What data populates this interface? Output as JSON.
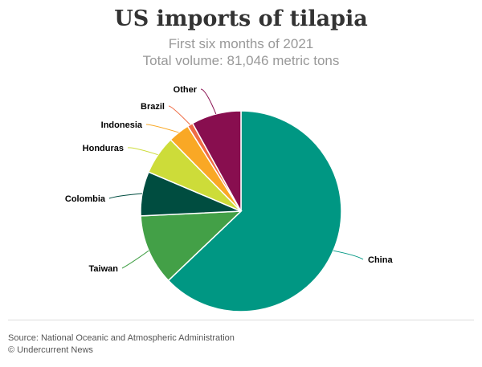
{
  "header": {
    "title": "US imports of tilapia",
    "subtitle_line1": "First six months of 2021",
    "subtitle_line2": "Total volume: 81,046 metric tons"
  },
  "footer": {
    "source": "Source: National Oceanic and Atmospheric Administration",
    "credit": "© Undercurrent News"
  },
  "chart_data": {
    "type": "pie",
    "start_angle_deg": 0,
    "direction": "clockwise",
    "legend": "none",
    "slices": [
      {
        "label": "China",
        "percent": 63.5,
        "color": "#009783"
      },
      {
        "label": "Taiwan",
        "percent": 11.5,
        "color": "#43a047"
      },
      {
        "label": "Colombia",
        "percent": 7.2,
        "color": "#004d40"
      },
      {
        "label": "Honduras",
        "percent": 6.3,
        "color": "#cddc39"
      },
      {
        "label": "Indonesia",
        "percent": 3.5,
        "color": "#f9a825"
      },
      {
        "label": "Brazil",
        "percent": 0.9,
        "color": "#ef6c44"
      },
      {
        "label": "Other",
        "percent": 8.1,
        "color": "#880e4f"
      }
    ]
  }
}
